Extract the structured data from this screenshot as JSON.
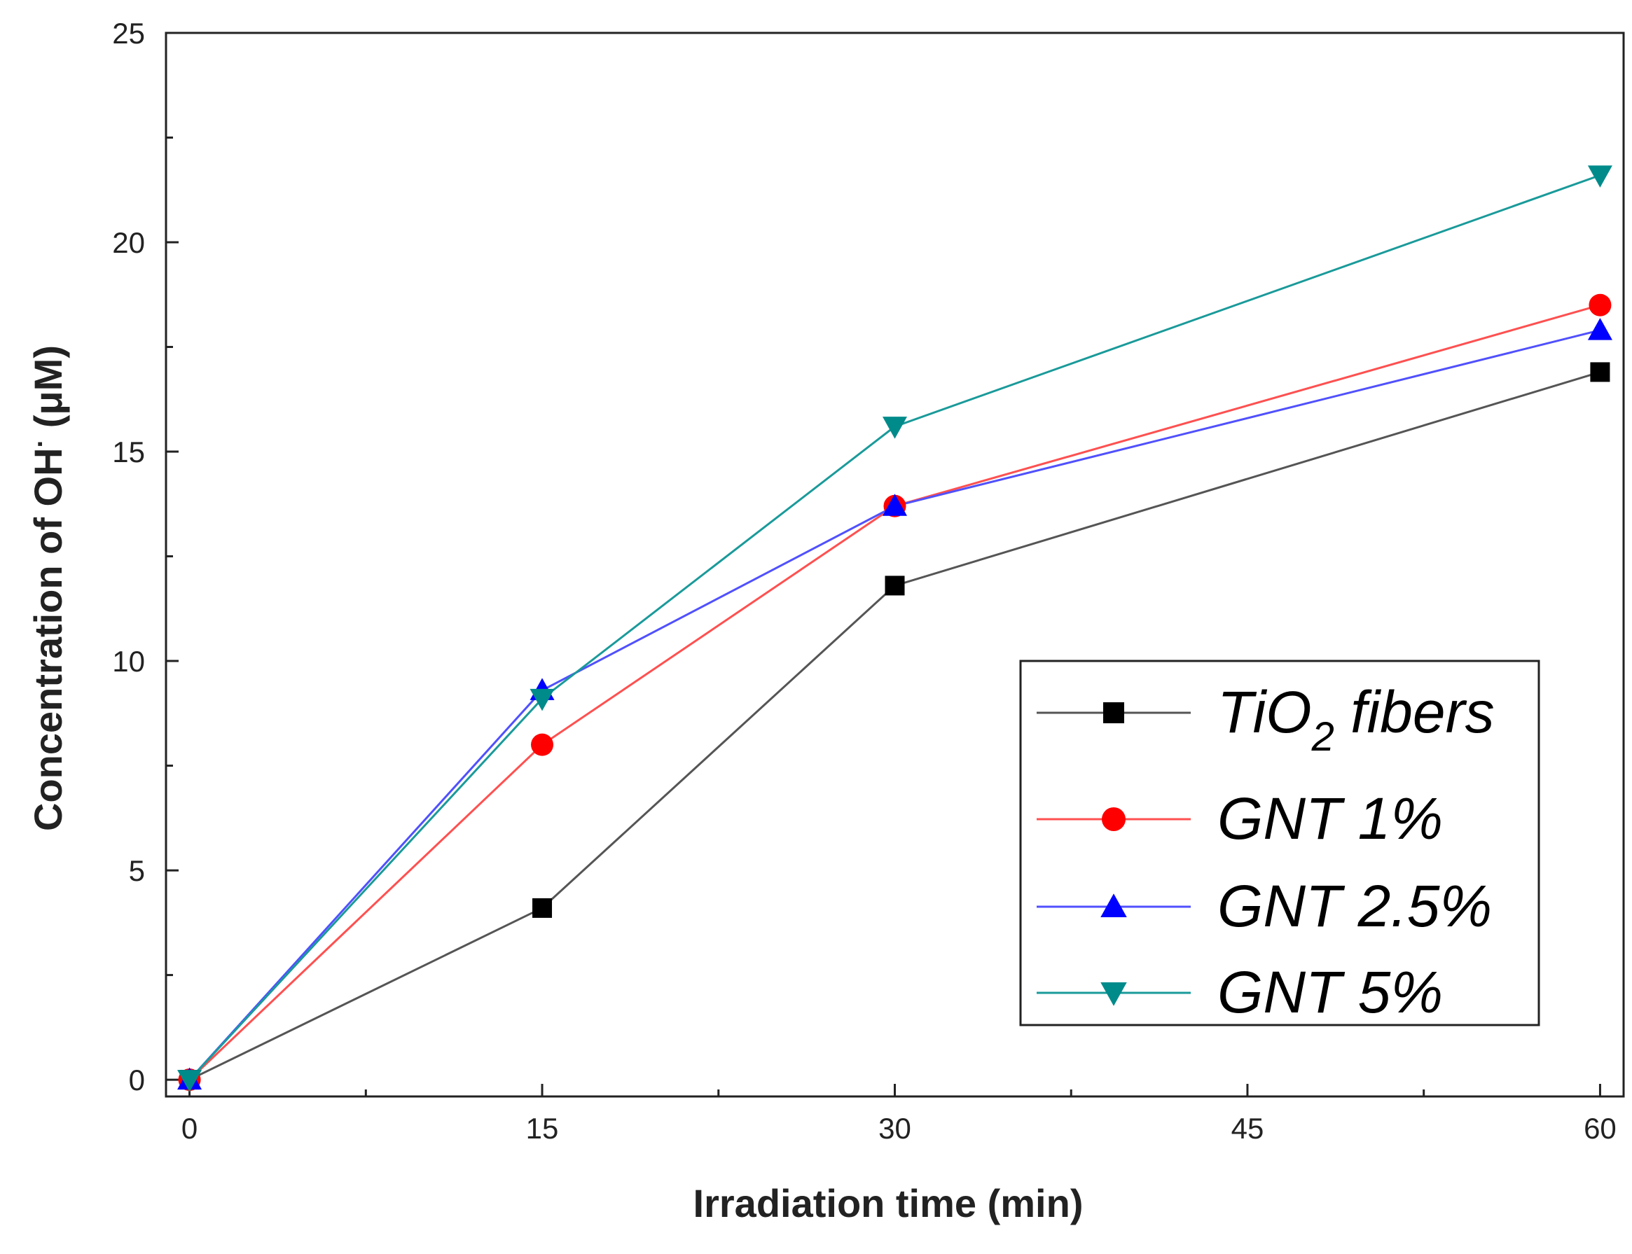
{
  "chart_data": {
    "type": "line",
    "title": "",
    "xlabel": "Irradiation time (min)",
    "ylabel_main": "Concentration of OH",
    "ylabel_sup": "·",
    "ylabel_unit": " (μM)",
    "xlim": [
      -1,
      61
    ],
    "ylim": [
      -0.4,
      25
    ],
    "x_ticks": [
      0,
      15,
      30,
      45,
      60
    ],
    "y_ticks": [
      0,
      5,
      10,
      15,
      20,
      25
    ],
    "x_minor_ticks": [
      7.5,
      22.5,
      37.5,
      52.5
    ],
    "y_minor_ticks": [
      2.5,
      7.5,
      12.5,
      17.5,
      22.5
    ],
    "x": [
      0,
      15,
      30,
      60
    ],
    "grid": false,
    "legend_position": "bottom-right",
    "series": [
      {
        "name": "TiO2 fibers",
        "name_main": "TiO",
        "name_sub": "2",
        "name_rest": " fibers",
        "color": "#000000",
        "line_color": "#555555",
        "marker": "square",
        "values": [
          0,
          4.1,
          11.8,
          16.9
        ]
      },
      {
        "name": "GNT 1%",
        "color": "#ff0000",
        "line_color": "#ff5050",
        "marker": "circle",
        "values": [
          0,
          8.0,
          13.7,
          18.5
        ]
      },
      {
        "name": "GNT 2.5%",
        "color": "#0000ff",
        "line_color": "#5050ff",
        "marker": "triangle-up",
        "values": [
          0,
          9.3,
          13.7,
          17.9
        ]
      },
      {
        "name": "GNT 5%",
        "color": "#008b8b",
        "line_color": "#1a9a9a",
        "marker": "triangle-down",
        "values": [
          0,
          9.1,
          15.6,
          21.6
        ]
      }
    ]
  }
}
